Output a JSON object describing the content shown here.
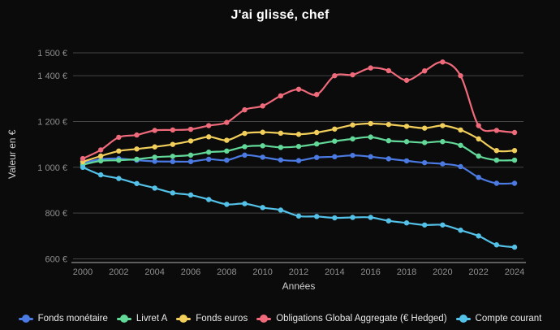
{
  "title": "J'ai glissé, chef",
  "colors": {
    "background": "#0b0b0b",
    "title_text": "#ffffff",
    "grid_line": "#454545",
    "axis_line": "#909090",
    "tick_text": "#8f8f8f",
    "axis_title_text": "#cfcfcf",
    "legend_text": "#e8e8e8"
  },
  "chart_data": {
    "type": "line",
    "title": "J'ai glissé, chef",
    "xlabel": "Années",
    "ylabel": "Valeur en €",
    "grid": "horizontal",
    "legend_position": "bottom",
    "ylim": [
      600,
      1500
    ],
    "x": [
      2000,
      2001,
      2002,
      2003,
      2004,
      2005,
      2006,
      2007,
      2008,
      2009,
      2010,
      2011,
      2012,
      2013,
      2014,
      2015,
      2016,
      2017,
      2018,
      2019,
      2020,
      2021,
      2022,
      2023,
      2024
    ],
    "x_tick_labels": [
      "2000",
      "2002",
      "2004",
      "2006",
      "2008",
      "2010",
      "2012",
      "2014",
      "2016",
      "2018",
      "2020",
      "2022",
      "2024"
    ],
    "y_ticks": [
      {
        "label": "1 500 €",
        "value": 1500
      },
      {
        "label": "1 400 €",
        "value": 1400
      },
      {
        "label": "1 200 €",
        "value": 1200
      },
      {
        "label": "1 000 €",
        "value": 1000
      },
      {
        "label": "800 €",
        "value": 800
      },
      {
        "label": "600 €",
        "value": 600
      }
    ],
    "series": [
      {
        "name": "Fonds monétaire",
        "color": "#4a7ae2",
        "values": [
          1018,
          1035,
          1038,
          1031,
          1026,
          1025,
          1025,
          1035,
          1031,
          1053,
          1044,
          1032,
          1029,
          1043,
          1046,
          1052,
          1046,
          1037,
          1028,
          1020,
          1015,
          1003,
          956,
          930,
          930
        ]
      },
      {
        "name": "Livret A",
        "color": "#62d998",
        "values": [
          1011,
          1028,
          1031,
          1035,
          1044,
          1048,
          1053,
          1066,
          1071,
          1090,
          1094,
          1087,
          1091,
          1102,
          1114,
          1124,
          1132,
          1116,
          1112,
          1108,
          1112,
          1096,
          1049,
          1031,
          1031
        ]
      },
      {
        "name": "Fonds euros",
        "color": "#f2cf5b",
        "values": [
          1024,
          1049,
          1071,
          1080,
          1089,
          1100,
          1115,
          1133,
          1118,
          1148,
          1153,
          1149,
          1144,
          1152,
          1167,
          1185,
          1191,
          1187,
          1179,
          1171,
          1182,
          1163,
          1124,
          1073,
          1073
        ]
      },
      {
        "name": "Obligations Global Aggregate (€ Hedged)",
        "color": "#ef6a7a",
        "values": [
          1038,
          1076,
          1131,
          1141,
          1161,
          1163,
          1166,
          1182,
          1196,
          1251,
          1268,
          1312,
          1341,
          1318,
          1400,
          1404,
          1434,
          1422,
          1380,
          1421,
          1460,
          1400,
          1182,
          1161,
          1152
        ]
      },
      {
        "name": "Compte courant",
        "color": "#54c2e8",
        "values": [
          1000,
          967,
          951,
          929,
          909,
          888,
          879,
          859,
          838,
          841,
          824,
          813,
          787,
          785,
          779,
          781,
          781,
          766,
          757,
          748,
          748,
          725,
          700,
          661,
          651
        ]
      }
    ]
  }
}
